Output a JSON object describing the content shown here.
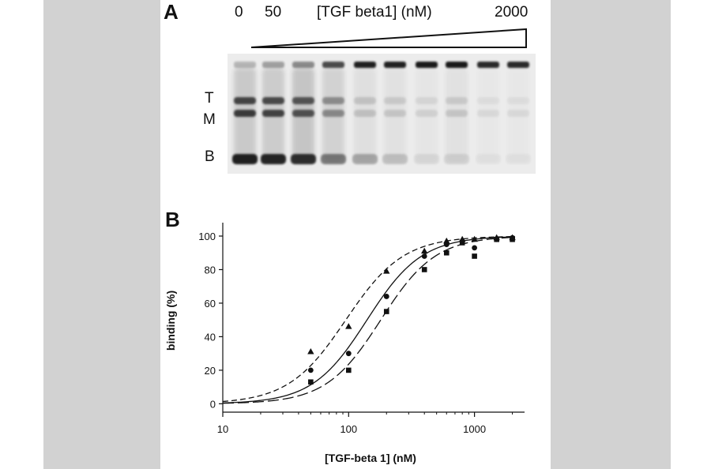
{
  "panel_a": {
    "letter": "A",
    "conc_start": "0",
    "conc_second": "50",
    "conc_label": "[TGF beta1] (nM)",
    "conc_end": "2000",
    "band_labels": [
      "T",
      "M",
      "B"
    ],
    "lanes": [
      {
        "t": 0.75,
        "m": 0.8,
        "b": 0.95,
        "smear": 0.45
      },
      {
        "t": 0.72,
        "m": 0.76,
        "b": 0.92,
        "smear": 0.42
      },
      {
        "t": 0.66,
        "m": 0.68,
        "b": 0.88,
        "smear": 0.5
      },
      {
        "t": 0.38,
        "m": 0.4,
        "b": 0.5,
        "smear": 0.32
      },
      {
        "t": 0.15,
        "m": 0.16,
        "b": 0.3,
        "smear": 0.16
      },
      {
        "t": 0.12,
        "m": 0.14,
        "b": 0.18,
        "smear": 0.12
      },
      {
        "t": 0.08,
        "m": 0.1,
        "b": 0.08,
        "smear": 0.08
      },
      {
        "t": 0.12,
        "m": 0.14,
        "b": 0.1,
        "smear": 0.14
      },
      {
        "t": 0.05,
        "m": 0.07,
        "b": 0.04,
        "smear": 0.05
      },
      {
        "t": 0.05,
        "m": 0.07,
        "b": 0.04,
        "smear": 0.04
      }
    ],
    "well_intensity": [
      0.25,
      0.35,
      0.45,
      0.75,
      0.95,
      0.95,
      0.98,
      0.98,
      0.9,
      0.9
    ],
    "colors": {
      "gel_bg": "#ececec",
      "band": "#151515"
    }
  },
  "panel_b": {
    "letter": "B"
  },
  "chart_data": {
    "type": "scatter",
    "title": "",
    "xlabel": "[TGF-beta 1] (nM)",
    "ylabel": "binding (%)",
    "xscale": "log",
    "xlim": [
      10,
      2500
    ],
    "ylim": [
      -5,
      108
    ],
    "xticks": [
      10,
      100,
      1000
    ],
    "xtick_labels": [
      "10",
      "100",
      "1000"
    ],
    "yticks": [
      0,
      20,
      40,
      60,
      80,
      100
    ],
    "ytick_labels": [
      "0",
      "20",
      "40",
      "60",
      "80",
      "100"
    ],
    "grid": false,
    "series": [
      {
        "marker": "triangle",
        "line": "short-dash",
        "x": [
          50,
          100,
          200,
          400,
          600,
          800,
          1000,
          1500,
          2000
        ],
        "y": [
          31,
          46,
          79,
          91,
          97,
          98,
          98,
          99,
          99
        ],
        "fit_ec50": 95,
        "fit_hill": 1.9
      },
      {
        "marker": "circle",
        "line": "solid",
        "x": [
          50,
          100,
          200,
          400,
          600,
          800,
          1000,
          1500,
          2000
        ],
        "y": [
          20,
          30,
          64,
          88,
          95,
          97,
          93,
          98,
          99
        ],
        "fit_ec50": 140,
        "fit_hill": 2.0
      },
      {
        "marker": "square",
        "line": "long-dash",
        "x": [
          50,
          100,
          200,
          400,
          600,
          800,
          1000,
          1500,
          2000
        ],
        "y": [
          13,
          20,
          55,
          80,
          90,
          96,
          88,
          98,
          98
        ],
        "fit_ec50": 180,
        "fit_hill": 2.0
      }
    ]
  }
}
